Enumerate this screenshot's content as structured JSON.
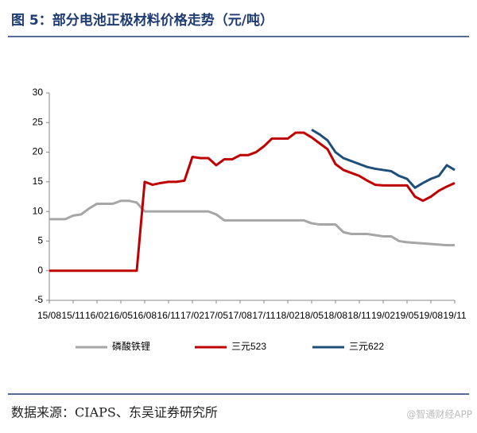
{
  "chart_data": {
    "type": "line",
    "title": "图 5：部分电池正极材料价格走势（元/吨）",
    "source": "数据来源：CIAPS、东吴证券研究所",
    "watermark": "@智通财经APP",
    "categories": [
      "15/08",
      null,
      null,
      "15/11",
      null,
      null,
      "16/02",
      null,
      null,
      "16/05",
      null,
      null,
      "16/08",
      null,
      null,
      "16/11",
      null,
      null,
      "17/02",
      null,
      null,
      "17/05",
      null,
      null,
      "17/08",
      null,
      null,
      "17/11",
      null,
      null,
      "18/02",
      null,
      null,
      "18/05",
      null,
      null,
      "18/08",
      null,
      null,
      "18/11",
      null,
      null,
      "19/02",
      null,
      null,
      "19/05",
      null,
      null,
      "19/08",
      null,
      null,
      "19/11"
    ],
    "series": [
      {
        "name": "磷酸铁锂",
        "color": "#a6a6a6",
        "values": [
          8.7,
          8.7,
          8.7,
          9.3,
          9.5,
          10.5,
          11.3,
          11.3,
          11.3,
          11.8,
          11.8,
          11.5,
          10,
          10,
          10,
          10,
          10,
          10,
          10,
          10,
          10,
          9.5,
          8.5,
          8.5,
          8.5,
          8.5,
          8.5,
          8.5,
          8.5,
          8.5,
          8.5,
          8.5,
          8.5,
          8,
          7.8,
          7.8,
          7.8,
          6.5,
          6.2,
          6.2,
          6.2,
          6,
          5.8,
          5.8,
          5,
          4.8,
          4.7,
          4.6,
          4.5,
          4.4,
          4.3,
          4.3
        ]
      },
      {
        "name": "三元523",
        "color": "#c00000",
        "values": [
          0,
          0,
          0,
          0,
          0,
          0,
          0,
          0,
          0,
          0,
          0,
          0,
          15,
          14.5,
          14.8,
          15,
          15,
          15.2,
          19.2,
          19,
          19,
          17.8,
          18.8,
          18.8,
          19.5,
          19.5,
          20,
          21,
          22.3,
          22.3,
          22.3,
          23.3,
          23.3,
          22.5,
          21.5,
          20.5,
          18,
          17,
          16.5,
          16,
          15.2,
          14.5,
          14.4,
          14.4,
          14.4,
          14.4,
          12.5,
          11.8,
          12.5,
          13.5,
          14.2,
          14.8
        ]
      },
      {
        "name": "三元622",
        "color": "#1f4e79",
        "values": [
          null,
          null,
          null,
          null,
          null,
          null,
          null,
          null,
          null,
          null,
          null,
          null,
          null,
          null,
          null,
          null,
          null,
          null,
          null,
          null,
          null,
          null,
          null,
          null,
          null,
          null,
          null,
          null,
          null,
          null,
          null,
          null,
          null,
          23.8,
          23,
          22,
          20,
          19,
          18.5,
          18,
          17.5,
          17.2,
          17,
          16.8,
          16,
          15.5,
          14,
          14.8,
          15.5,
          16,
          17.8,
          17
        ]
      }
    ],
    "ylim": [
      -5,
      30
    ],
    "yticks": [
      -5,
      0,
      5,
      10,
      15,
      20,
      25,
      30
    ]
  }
}
